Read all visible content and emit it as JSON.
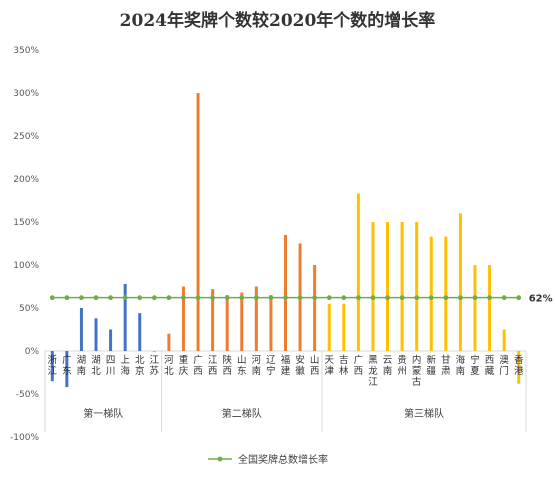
{
  "chart_data": {
    "type": "bar",
    "title": "2024年奖牌个数较2020年个数的增长率",
    "ylim": [
      -100,
      350
    ],
    "y_step": 50,
    "y_tick_suffix": "%",
    "grid": false,
    "legend_position": "bottom",
    "groups": [
      {
        "name": "第一梯队",
        "color": "#4472C4",
        "categories": [
          "浙江",
          "广东",
          "湖南",
          "湖北",
          "四川",
          "上海",
          "北京",
          "江苏"
        ],
        "values": [
          -35,
          -42,
          50,
          38,
          25,
          78,
          44,
          0
        ]
      },
      {
        "name": "第二梯队",
        "color": "#ED7D31",
        "categories": [
          "河北",
          "重庆",
          "广西",
          "江西",
          "陕西",
          "山东",
          "河南",
          "辽宁",
          "福建",
          "安徽",
          "山西"
        ],
        "values": [
          20,
          75,
          300,
          72,
          65,
          68,
          75,
          65,
          135,
          125,
          100
        ]
      },
      {
        "name": "第三梯队",
        "color": "#FFC000",
        "categories": [
          "天津",
          "吉林",
          "广西",
          "黑龙江",
          "云南",
          "贵州",
          "内蒙古",
          "新疆",
          "甘肃",
          "海南",
          "宁夏",
          "西藏",
          "澳门",
          "香港"
        ],
        "values": [
          55,
          55,
          183,
          150,
          150,
          150,
          150,
          133,
          133,
          160,
          100,
          100,
          25,
          -38
        ]
      }
    ],
    "average_line": {
      "name": "全国奖牌总数增长率",
      "value": 62,
      "label": "62%",
      "color": "#70AD47"
    }
  }
}
